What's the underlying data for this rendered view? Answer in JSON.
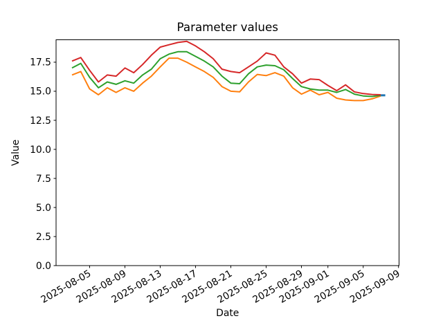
{
  "chart_data": {
    "type": "line",
    "title": "Parameter values",
    "xlabel": "Date",
    "ylabel": "Value",
    "grid": false,
    "legend": null,
    "background": "#ffffff",
    "spine_color": "#000000",
    "ylim": [
      0,
      19.43
    ],
    "xlim_day_offsets": [
      -1.8,
      37.06
    ],
    "y_ticks": [
      {
        "value": 0.0,
        "label": "0.0"
      },
      {
        "value": 2.5,
        "label": "2.5"
      },
      {
        "value": 5.0,
        "label": "5.0"
      },
      {
        "value": 7.5,
        "label": "7.5"
      },
      {
        "value": 10.0,
        "label": "10.0"
      },
      {
        "value": 12.5,
        "label": "12.5"
      },
      {
        "value": 15.0,
        "label": "15.0"
      },
      {
        "value": 17.5,
        "label": "17.5"
      }
    ],
    "x_ticks": [
      {
        "day": 2,
        "label": "2025-08-05"
      },
      {
        "day": 6,
        "label": "2025-08-09"
      },
      {
        "day": 10,
        "label": "2025-08-13"
      },
      {
        "day": 14,
        "label": "2025-08-17"
      },
      {
        "day": 18,
        "label": "2025-08-21"
      },
      {
        "day": 22,
        "label": "2025-08-25"
      },
      {
        "day": 26,
        "label": "2025-08-29"
      },
      {
        "day": 29,
        "label": "2025-09-01"
      },
      {
        "day": 33,
        "label": "2025-09-05"
      },
      {
        "day": 37,
        "label": "2025-09-09"
      }
    ],
    "x_dates": [
      "2025-08-03",
      "2025-08-04",
      "2025-08-05",
      "2025-08-06",
      "2025-08-07",
      "2025-08-08",
      "2025-08-09",
      "2025-08-10",
      "2025-08-11",
      "2025-08-12",
      "2025-08-13",
      "2025-08-14",
      "2025-08-15",
      "2025-08-16",
      "2025-08-17",
      "2025-08-18",
      "2025-08-19",
      "2025-08-20",
      "2025-08-21",
      "2025-08-22",
      "2025-08-23",
      "2025-08-24",
      "2025-08-25",
      "2025-08-26",
      "2025-08-27",
      "2025-08-28",
      "2025-08-29",
      "2025-08-30",
      "2025-08-31",
      "2025-09-01",
      "2025-09-02",
      "2025-09-03",
      "2025-09-04",
      "2025-09-05",
      "2025-09-06",
      "2025-09-07"
    ],
    "series": [
      {
        "name": "orange",
        "color": "#ff7f0e",
        "values": [
          16.4,
          16.7,
          15.2,
          14.7,
          15.3,
          14.9,
          15.3,
          15.0,
          15.7,
          16.3,
          17.1,
          17.85,
          17.85,
          17.5,
          17.1,
          16.7,
          16.2,
          15.4,
          15.0,
          14.95,
          15.8,
          16.45,
          16.35,
          16.6,
          16.3,
          15.3,
          14.75,
          15.1,
          14.7,
          14.9,
          14.4,
          14.25,
          14.2,
          14.2,
          14.35,
          14.6
        ]
      },
      {
        "name": "green",
        "color": "#2ca02c",
        "values": [
          17.0,
          17.4,
          16.2,
          15.3,
          15.8,
          15.6,
          15.9,
          15.7,
          16.4,
          16.9,
          17.8,
          18.2,
          18.4,
          18.4,
          18.0,
          17.6,
          17.1,
          16.3,
          15.7,
          15.65,
          16.5,
          17.1,
          17.25,
          17.2,
          16.85,
          16.1,
          15.4,
          15.2,
          15.1,
          15.1,
          14.9,
          15.15,
          14.75,
          14.6,
          14.55,
          14.65
        ]
      },
      {
        "name": "red",
        "color": "#d62728",
        "values": [
          17.6,
          17.9,
          16.8,
          15.8,
          16.4,
          16.3,
          17.0,
          16.6,
          17.3,
          18.1,
          18.8,
          19.0,
          19.2,
          19.3,
          18.9,
          18.4,
          17.8,
          16.9,
          16.7,
          16.6,
          17.1,
          17.6,
          18.3,
          18.1,
          17.1,
          16.5,
          15.7,
          16.05,
          16.0,
          15.5,
          15.05,
          15.55,
          14.95,
          14.8,
          14.72,
          14.7
        ]
      }
    ],
    "extra_segments": [
      {
        "name": "blue-end-dash",
        "color": "#1f77b4",
        "points": [
          {
            "day": 35.0,
            "value": 14.65
          },
          {
            "day": 35.5,
            "value": 14.65
          }
        ]
      }
    ]
  }
}
